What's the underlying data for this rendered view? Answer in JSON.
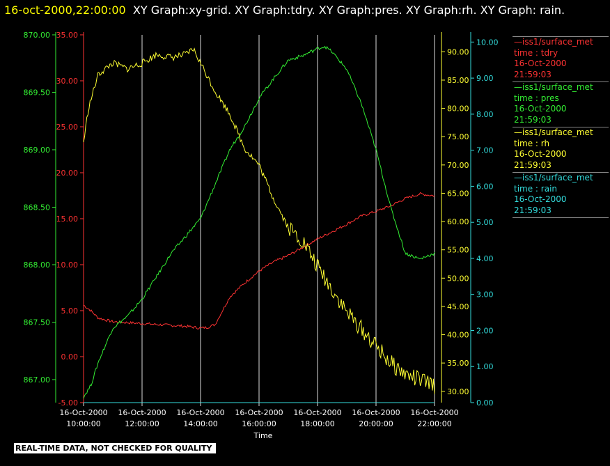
{
  "title": {
    "timestamp": "16-oct-2000,22:00:00",
    "text": "XY Graph:xy-grid.  XY Graph:tdry.  XY Graph:pres.  XY Graph:rh.  XY Graph: rain."
  },
  "legend": [
    {
      "source": "iss1/surface_met",
      "label": "time : tdry",
      "date": "16-Oct-2000",
      "time": "21:59:03",
      "color": "#ff3333"
    },
    {
      "source": "iss1/surface_met",
      "label": "time : pres",
      "date": "16-Oct-2000",
      "time": "21:59:03",
      "color": "#33ee33"
    },
    {
      "source": "iss1/surface_met",
      "label": "time : rh",
      "date": "16-Oct-2000",
      "time": "21:59:03",
      "color": "#ffff33"
    },
    {
      "source": "iss1/surface_met",
      "label": "time : rain",
      "date": "16-Oct-2000",
      "time": "21:59:03",
      "color": "#33dddd"
    }
  ],
  "disclaimer": "REAL-TIME DATA, NOT CHECKED FOR QUALITY",
  "chart_data": {
    "type": "line",
    "xlabel": "Time",
    "xlim": [
      "2000-10-16 10:00",
      "2000-10-16 22:00"
    ],
    "x_ticks": [
      {
        "date": "16-Oct-2000",
        "time": "10:00:00"
      },
      {
        "date": "16-Oct-2000",
        "time": "12:00:00"
      },
      {
        "date": "16-Oct-2000",
        "time": "14:00:00"
      },
      {
        "date": "16-Oct-2000",
        "time": "16:00:00"
      },
      {
        "date": "16-Oct-2000",
        "time": "18:00:00"
      },
      {
        "date": "16-Oct-2000",
        "time": "20:00:00"
      },
      {
        "date": "16-Oct-2000",
        "time": "22:00:00"
      }
    ],
    "axes": {
      "pres": {
        "ylim": [
          866.8,
          870.0
        ],
        "ticks": [
          "867.00",
          "867.50",
          "868.00",
          "868.50",
          "869.00",
          "869.50",
          "870.00"
        ],
        "color": "#33ee33"
      },
      "tdry": {
        "ylim": [
          -5.0,
          35.0
        ],
        "ticks": [
          "-5.00",
          "0.00",
          "5.00",
          "10.00",
          "15.00",
          "20.00",
          "25.00",
          "30.00",
          "35.00"
        ],
        "color": "#ff3333"
      },
      "rh": {
        "ylim": [
          28.0,
          93.0
        ],
        "ticks": [
          "30.00",
          "35.00",
          "40.00",
          "45.00",
          "50.00",
          "55.00",
          "60.00",
          "65.00",
          "70.00",
          "75.00",
          "80.00",
          "85.00",
          "90.00"
        ],
        "color": "#ffff33"
      },
      "rain": {
        "ylim": [
          0.0,
          10.2
        ],
        "ticks": [
          "0.00",
          "1.00",
          "2.00",
          "3.00",
          "4.00",
          "5.00",
          "6.00",
          "7.00",
          "8.00",
          "9.00",
          "10.00"
        ],
        "color": "#33dddd"
      }
    },
    "grid": "vertical",
    "series": [
      {
        "name": "tdry",
        "axis": "tdry",
        "x": [
          "2000-10-16 10:00",
          "2000-10-16 10:15",
          "2000-10-16 10:30",
          "2000-10-16 11:00",
          "2000-10-16 11:30",
          "2000-10-16 12:00",
          "2000-10-16 12:30",
          "2000-10-16 13:00",
          "2000-10-16 13:30",
          "2000-10-16 14:00",
          "2000-10-16 14:15",
          "2000-10-16 14:30",
          "2000-10-16 15:00",
          "2000-10-16 15:30",
          "2000-10-16 16:00",
          "2000-10-16 16:30",
          "2000-10-16 17:00",
          "2000-10-16 17:30",
          "2000-10-16 18:00",
          "2000-10-16 18:30",
          "2000-10-16 19:00",
          "2000-10-16 19:30",
          "2000-10-16 20:00",
          "2000-10-16 20:30",
          "2000-10-16 21:00",
          "2000-10-16 21:30",
          "2000-10-16 22:00"
        ],
        "values": [
          5.6,
          5.0,
          4.2,
          3.8,
          3.7,
          3.6,
          3.5,
          3.4,
          3.3,
          3.1,
          3.2,
          3.5,
          6.5,
          8.0,
          9.3,
          10.3,
          11.0,
          11.9,
          12.8,
          13.6,
          14.4,
          15.3,
          15.8,
          16.4,
          17.2,
          17.7,
          17.5
        ]
      },
      {
        "name": "pres",
        "axis": "pres",
        "x": [
          "2000-10-16 10:00",
          "2000-10-16 10:15",
          "2000-10-16 10:30",
          "2000-10-16 11:00",
          "2000-10-16 11:30",
          "2000-10-16 12:00",
          "2000-10-16 12:30",
          "2000-10-16 13:00",
          "2000-10-16 13:30",
          "2000-10-16 14:00",
          "2000-10-16 14:30",
          "2000-10-16 15:00",
          "2000-10-16 15:30",
          "2000-10-16 16:00",
          "2000-10-16 16:30",
          "2000-10-16 17:00",
          "2000-10-16 17:30",
          "2000-10-16 18:00",
          "2000-10-16 18:15",
          "2000-10-16 18:30",
          "2000-10-16 19:00",
          "2000-10-16 19:30",
          "2000-10-16 20:00",
          "2000-10-16 20:30",
          "2000-10-16 21:00",
          "2000-10-16 21:30",
          "2000-10-16 22:00"
        ],
        "values": [
          866.85,
          866.95,
          867.15,
          867.45,
          867.55,
          867.7,
          867.9,
          868.1,
          868.25,
          868.4,
          868.7,
          869.0,
          869.2,
          869.45,
          869.62,
          869.78,
          869.82,
          869.88,
          869.9,
          869.85,
          869.7,
          869.4,
          869.0,
          868.5,
          868.1,
          868.05,
          868.1
        ]
      },
      {
        "name": "rh",
        "axis": "rh",
        "x": [
          "2000-10-16 10:00",
          "2000-10-16 10:10",
          "2000-10-16 10:30",
          "2000-10-16 11:00",
          "2000-10-16 11:30",
          "2000-10-16 12:00",
          "2000-10-16 12:30",
          "2000-10-16 13:00",
          "2000-10-16 13:30",
          "2000-10-16 13:45",
          "2000-10-16 14:00",
          "2000-10-16 14:30",
          "2000-10-16 15:00",
          "2000-10-16 15:30",
          "2000-10-16 16:00",
          "2000-10-16 16:30",
          "2000-10-16 17:00",
          "2000-10-16 17:30",
          "2000-10-16 18:00",
          "2000-10-16 18:30",
          "2000-10-16 19:00",
          "2000-10-16 19:30",
          "2000-10-16 20:00",
          "2000-10-16 20:30",
          "2000-10-16 21:00",
          "2000-10-16 21:30",
          "2000-10-16 22:00"
        ],
        "values": [
          74.0,
          80.0,
          86.0,
          88.0,
          87.0,
          88.0,
          89.5,
          89.0,
          89.5,
          90.5,
          88.0,
          83.0,
          79.0,
          73.0,
          70.0,
          64.0,
          59.0,
          56.5,
          52.0,
          48.0,
          44.0,
          41.0,
          38.0,
          35.0,
          33.0,
          32.0,
          31.0
        ]
      },
      {
        "name": "rain",
        "axis": "rain",
        "x": [
          "2000-10-16 10:00",
          "2000-10-16 22:00"
        ],
        "values": [
          0.0,
          0.0
        ]
      }
    ]
  }
}
